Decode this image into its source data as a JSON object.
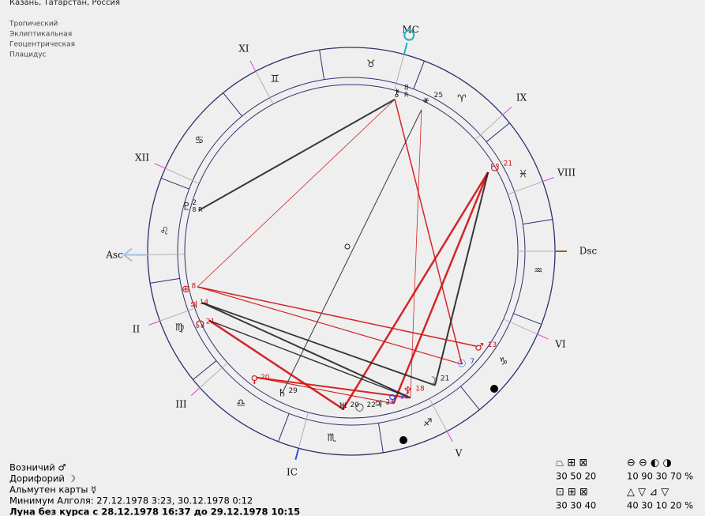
{
  "header": {
    "location": "Казань, Татарстан, Россия",
    "settings": [
      "Тропический",
      "Эклиптикальная",
      "Геоцентрическая",
      "Плацидус"
    ]
  },
  "houses": [
    "Asc",
    "II",
    "III",
    "IC",
    "V",
    "VI",
    "Dsc",
    "VIII",
    "IX",
    "MC",
    "XI",
    "XII"
  ],
  "signs": [
    "♈",
    "♉",
    "♊",
    "♋",
    "♌",
    "♍",
    "♎",
    "♏",
    "♐",
    "♑",
    "♒",
    "♓"
  ],
  "planets": [
    {
      "glyph": "⚷",
      "degree": 8,
      "retro": "R"
    },
    {
      "glyph": "⚹",
      "degree": 25
    },
    {
      "glyph": "☋",
      "degree": 21
    },
    {
      "glyph": "♂",
      "degree": 13
    },
    {
      "glyph": "☉",
      "degree": 7
    },
    {
      "glyph": "☽",
      "degree": 21
    },
    {
      "glyph": "♆",
      "degree": 18
    },
    {
      "glyph": "♀",
      "degree": 16
    },
    {
      "glyph": "♃",
      "degree": 2
    },
    {
      "glyph": "○",
      "degree": 22
    },
    {
      "glyph": "♅",
      "degree": 20
    },
    {
      "glyph": "♄",
      "degree": 29
    },
    {
      "glyph": "♀",
      "degree": 20
    },
    {
      "glyph": "☊",
      "degree": 21
    },
    {
      "glyph": "♃",
      "degree": 14
    },
    {
      "glyph": "⊕",
      "degree": 8
    },
    {
      "glyph": "♇",
      "degree": 2,
      "retro": "8 R"
    }
  ],
  "info": [
    "Возничий ♂",
    "Дорифорий ☽",
    "Альмутен карты ☿",
    "Минимум Алголя: 27.12.1978 3:23,  30.12.1978 0:12",
    "Луна без курса с 28.12.1978 16:37 до 29.12.1978 10:15"
  ],
  "stats": {
    "modes_symbols": "⏢ ⊞ ⊠",
    "modes_values": "30 50 20",
    "elements_symbols": "⊖ ⊖ ◐ ◑",
    "elements_values": "10 90 30 70 %",
    "cross_symbols": "⊡ ⊞ ⊠",
    "cross_values": "30 30 40",
    "triangles_symbols": "△ ▽ ⊿ ▽",
    "triangles_values": "40 30 10 20 %"
  }
}
